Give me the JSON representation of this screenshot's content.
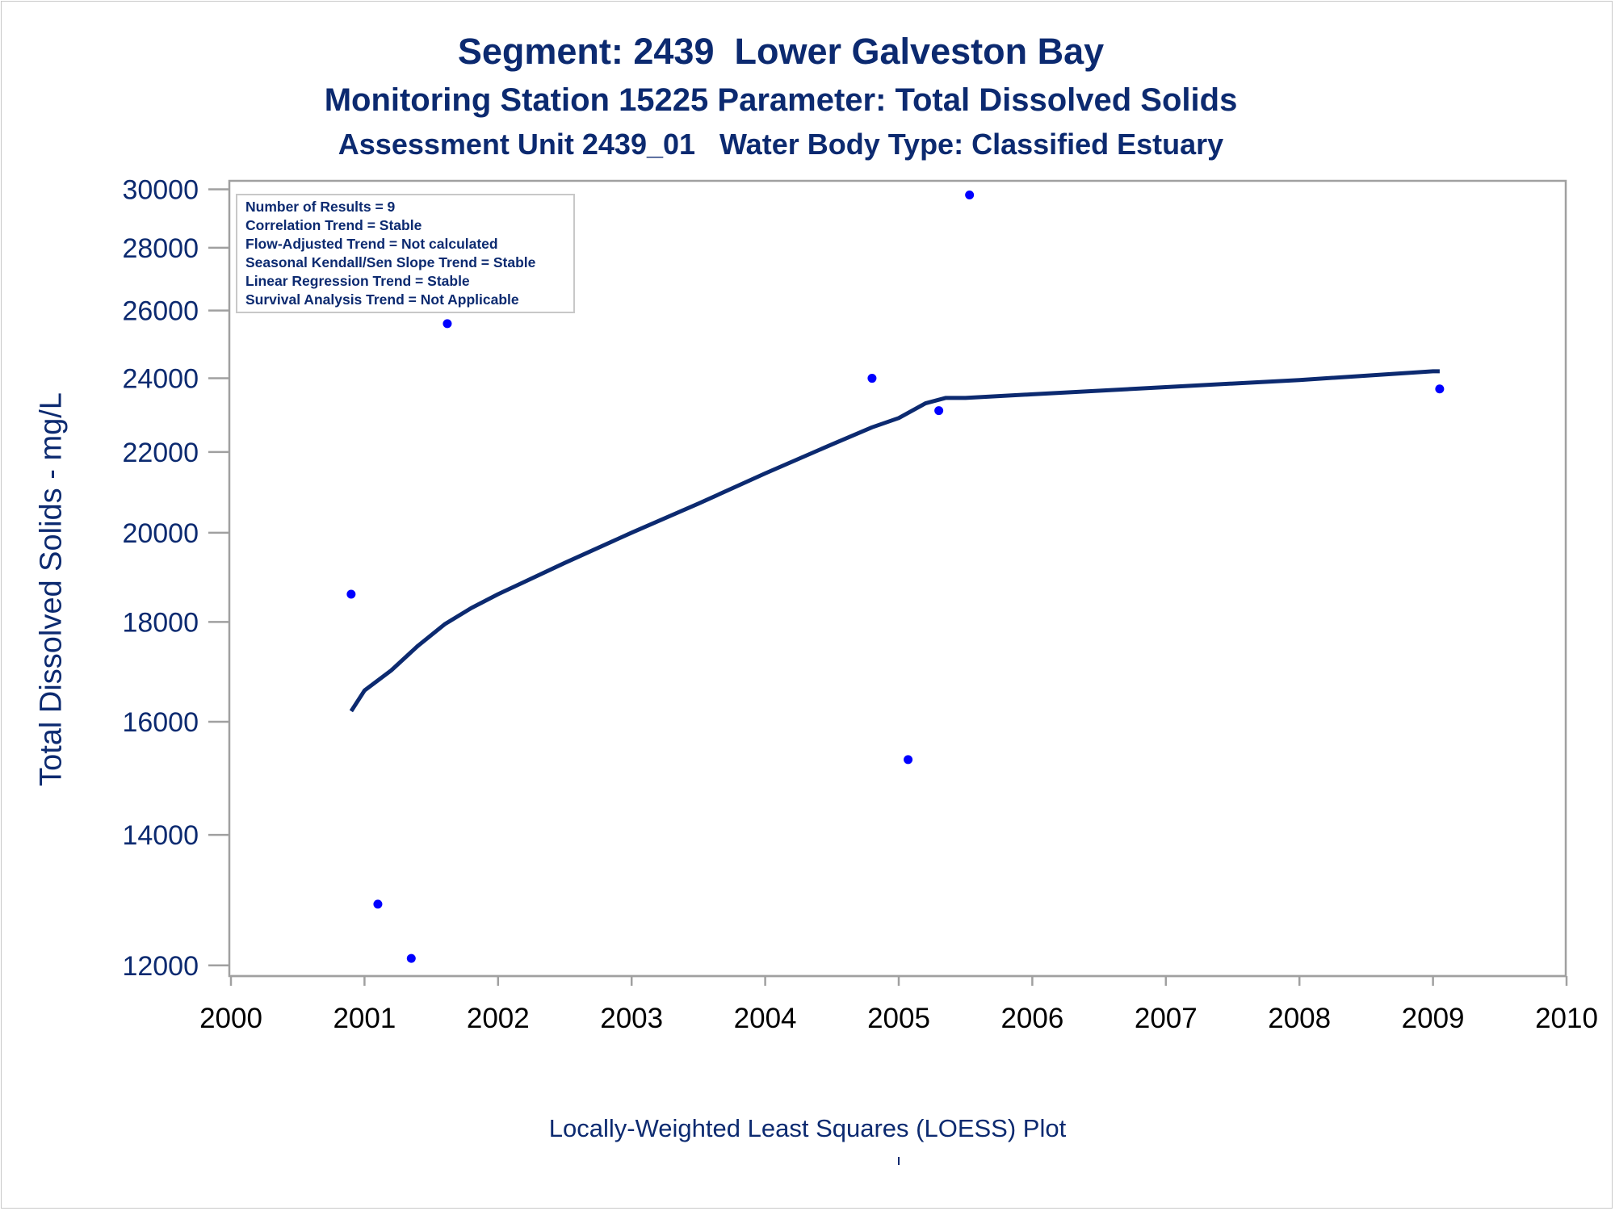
{
  "titles": {
    "line1": "Segment: 2439  Lower Galveston Bay",
    "line2": "Monitoring Station 15225 Parameter: Total Dissolved Solids",
    "line3": "Assessment Unit 2439_01   Water Body Type: Classified Estuary"
  },
  "stats": [
    "Number of Results = 9",
    "Correlation Trend = Stable",
    "Flow-Adjusted Trend = Not calculated",
    "Seasonal Kendall/Sen Slope Trend = Stable",
    "Linear Regression Trend = Stable",
    "Survival Analysis Trend = Not Applicable"
  ],
  "footnote": "Locally-Weighted Least Squares (LOESS) Plot",
  "chart_data": {
    "type": "scatter",
    "title": "",
    "xlabel": "",
    "ylabel": "Total Dissolved Solids - mg/L",
    "y_scale": "log",
    "xlim": [
      2000,
      2010
    ],
    "ylim": [
      11850,
      30300
    ],
    "x_ticks": [
      "2000",
      "2001",
      "2002",
      "2003",
      "2004",
      "2005",
      "2006",
      "2007",
      "2008",
      "2009",
      "2010"
    ],
    "y_ticks": [
      "12000",
      "14000",
      "16000",
      "18000",
      "20000",
      "22000",
      "24000",
      "26000",
      "28000",
      "30000"
    ],
    "grid": false,
    "colors": {
      "points": "#0000ff",
      "line": "#0c2a70",
      "text": "#0c2a70",
      "frame": "#a0a0a0"
    },
    "series": [
      {
        "kind": "points",
        "x": [
          2000.9,
          2001.1,
          2001.35,
          2001.62,
          2004.8,
          2005.07,
          2005.3,
          2005.53,
          2009.05
        ],
        "y": [
          18600,
          12900,
          12100,
          25600,
          24000,
          15300,
          23100,
          29800,
          23700
        ]
      },
      {
        "kind": "loess",
        "x": [
          2000.9,
          2001.0,
          2001.2,
          2001.4,
          2001.6,
          2001.8,
          2002.0,
          2002.5,
          2003.0,
          2003.5,
          2004.0,
          2004.5,
          2004.8,
          2005.0,
          2005.2,
          2005.35,
          2005.5,
          2006.0,
          2007.0,
          2008.0,
          2009.0,
          2009.05
        ],
        "y": [
          16200,
          16600,
          17000,
          17500,
          17950,
          18300,
          18600,
          19300,
          20000,
          20700,
          21450,
          22200,
          22650,
          22900,
          23300,
          23450,
          23450,
          23550,
          23750,
          23950,
          24200,
          24200
        ]
      }
    ]
  }
}
